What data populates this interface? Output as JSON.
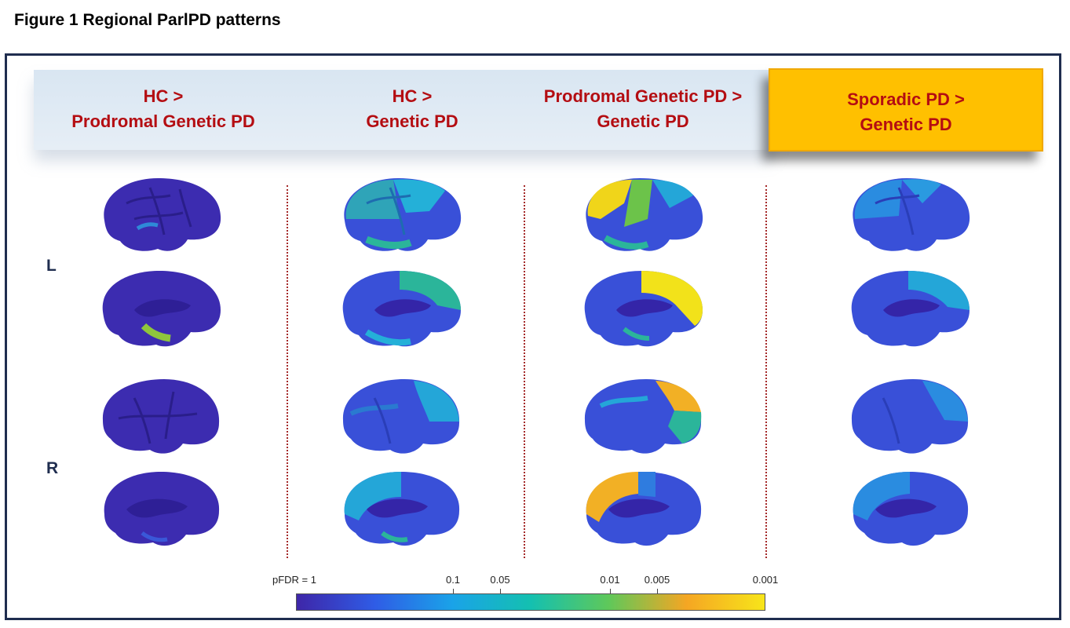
{
  "figure_title": "Figure 1 Regional ParlPD patterns",
  "columns": [
    {
      "line1": "HC >",
      "line2": "Prodromal Genetic PD"
    },
    {
      "line1": "HC >",
      "line2": "Genetic PD"
    },
    {
      "line1": "Prodromal Genetic PD >",
      "line2": "Genetic PD"
    },
    {
      "line1": "Sporadic PD >",
      "line2": "Genetic PD"
    }
  ],
  "hemispheres": {
    "left": "L",
    "right": "R"
  },
  "colorbar": {
    "ticks": [
      "pFDR = 1",
      "0.1",
      "0.05",
      "0.01",
      "0.005",
      "0.001"
    ],
    "colors": [
      "#3e26a8",
      "#2f5ce6",
      "#1aa3e8",
      "#14c0b0",
      "#5fc85a",
      "#f5a623",
      "#f7e51a"
    ]
  },
  "accent_colors": {
    "header_text": "#b40d12",
    "highlight": "#ffc000",
    "frame": "#1f2d4f"
  }
}
